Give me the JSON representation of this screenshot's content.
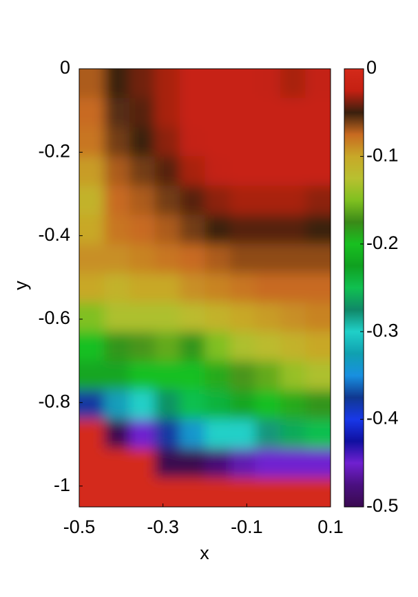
{
  "chart_data": {
    "type": "heatmap",
    "xlabel": "x",
    "ylabel": "y",
    "xlim": [
      -0.5,
      0.1
    ],
    "ylim": [
      -1.05,
      0
    ],
    "xticks": [
      -0.5,
      -0.3,
      -0.1,
      0.1
    ],
    "yticks": [
      0,
      -0.2,
      -0.4,
      -0.6,
      -0.8,
      -1
    ],
    "x": [
      -0.47,
      -0.41,
      -0.35,
      -0.29,
      -0.23,
      -0.17,
      -0.11,
      -0.05,
      0.01,
      0.07
    ],
    "y": [
      -0.035,
      -0.105,
      -0.175,
      -0.245,
      -0.315,
      -0.385,
      -0.455,
      -0.525,
      -0.595,
      -0.665,
      -0.735,
      -0.805,
      -0.875,
      -0.945,
      -1.015
    ],
    "z": [
      [
        -0.07,
        -0.05,
        -0.04,
        -0.03,
        -0.02,
        -0.02,
        -0.02,
        -0.025,
        -0.03,
        -0.025
      ],
      [
        -0.075,
        -0.055,
        -0.045,
        -0.03,
        -0.02,
        -0.02,
        -0.02,
        -0.02,
        -0.02,
        -0.02
      ],
      [
        -0.08,
        -0.06,
        -0.05,
        -0.035,
        -0.025,
        -0.02,
        -0.02,
        -0.02,
        -0.02,
        -0.02
      ],
      [
        -0.095,
        -0.07,
        -0.06,
        -0.045,
        -0.03,
        -0.025,
        -0.02,
        -0.02,
        -0.02,
        -0.02
      ],
      [
        -0.11,
        -0.075,
        -0.07,
        -0.06,
        -0.045,
        -0.035,
        -0.03,
        -0.03,
        -0.03,
        -0.035
      ],
      [
        -0.1,
        -0.08,
        -0.075,
        -0.07,
        -0.06,
        -0.05,
        -0.045,
        -0.045,
        -0.045,
        -0.05
      ],
      [
        -0.09,
        -0.09,
        -0.085,
        -0.08,
        -0.075,
        -0.07,
        -0.065,
        -0.065,
        -0.065,
        -0.065
      ],
      [
        -0.1,
        -0.11,
        -0.1,
        -0.1,
        -0.09,
        -0.085,
        -0.08,
        -0.075,
        -0.075,
        -0.075
      ],
      [
        -0.15,
        -0.13,
        -0.13,
        -0.13,
        -0.12,
        -0.11,
        -0.1,
        -0.095,
        -0.09,
        -0.085
      ],
      [
        -0.2,
        -0.18,
        -0.17,
        -0.16,
        -0.18,
        -0.15,
        -0.13,
        -0.12,
        -0.11,
        -0.1
      ],
      [
        -0.22,
        -0.22,
        -0.2,
        -0.2,
        -0.2,
        -0.19,
        -0.17,
        -0.16,
        -0.14,
        -0.13
      ],
      [
        -0.38,
        -0.33,
        -0.3,
        -0.27,
        -0.25,
        -0.24,
        -0.22,
        -0.2,
        -0.19,
        -0.18
      ],
      [
        0,
        -0.5,
        -0.45,
        -0.38,
        -0.34,
        -0.3,
        -0.3,
        -0.28,
        -0.26,
        -0.25
      ],
      [
        0,
        0,
        0,
        -0.5,
        -0.5,
        -0.48,
        -0.46,
        -0.45,
        -0.45,
        -0.45
      ],
      [
        0,
        0,
        0,
        0,
        0,
        0,
        0,
        0,
        0,
        0
      ]
    ],
    "clim": [
      -0.5,
      0
    ],
    "cticks": [
      0,
      -0.1,
      -0.2,
      -0.3,
      -0.4,
      -0.5
    ],
    "colormap": [
      "#3a0a50",
      "#4a1080",
      "#7020d0",
      "#1010a0",
      "#1838e8",
      "#103890",
      "#1890e0",
      "#10a0b0",
      "#20d0c8",
      "#108868",
      "#10c050",
      "#10a020",
      "#18c020",
      "#3a8a18",
      "#80c020",
      "#b8c030",
      "#c8a828",
      "#c86a20",
      "#3a200e",
      "#c42012",
      "#d42a1a"
    ]
  }
}
